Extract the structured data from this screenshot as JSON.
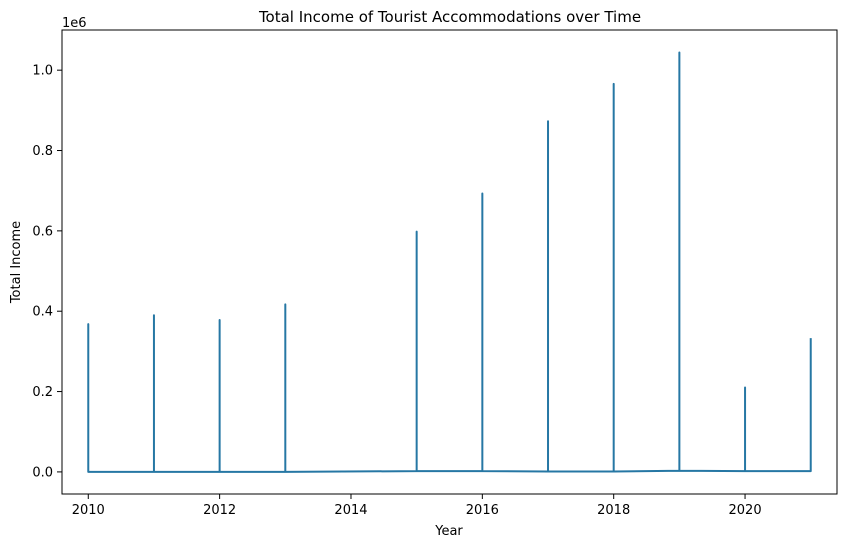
{
  "chart_data": {
    "type": "line",
    "title": "Total Income of Tourist Accommodations over Time",
    "xlabel": "Year",
    "ylabel": "Total Income",
    "y_offset_label": "1e6",
    "xlim": [
      2009.6,
      2021.4
    ],
    "ylim": [
      -0.055,
      1.1
    ],
    "y_scale_multiplier": 1000000,
    "grid": false,
    "line_color": "#2677a4",
    "x_ticks": [
      2010,
      2012,
      2014,
      2016,
      2018,
      2020
    ],
    "x_tick_labels": [
      "2010",
      "2012",
      "2014",
      "2016",
      "2018",
      "2020"
    ],
    "y_ticks": [
      0.0,
      0.2,
      0.4,
      0.6,
      0.8,
      1.0
    ],
    "y_tick_labels": [
      "0.0",
      "0.2",
      "0.4",
      "0.6",
      "0.8",
      "1.0"
    ],
    "series": [
      {
        "x": [
          2010,
          2010,
          2010,
          2011,
          2011,
          2011,
          2012,
          2012,
          2012,
          2013,
          2013,
          2013,
          2015,
          2015,
          2015,
          2016,
          2016,
          2016,
          2017,
          2017,
          2017,
          2018,
          2018,
          2018,
          2019,
          2019,
          2019,
          2020,
          2020,
          2020,
          2021,
          2021
        ],
        "y": [
          0.0,
          0.368,
          0.0,
          0.0,
          0.39,
          0.0,
          0.0,
          0.378,
          0.0,
          0.0,
          0.417,
          0.0,
          0.002,
          0.598,
          0.002,
          0.002,
          0.693,
          0.002,
          0.001,
          0.873,
          0.001,
          0.001,
          0.966,
          0.001,
          0.003,
          1.044,
          0.003,
          0.002,
          0.21,
          0.002,
          0.002,
          0.333
        ]
      }
    ]
  }
}
